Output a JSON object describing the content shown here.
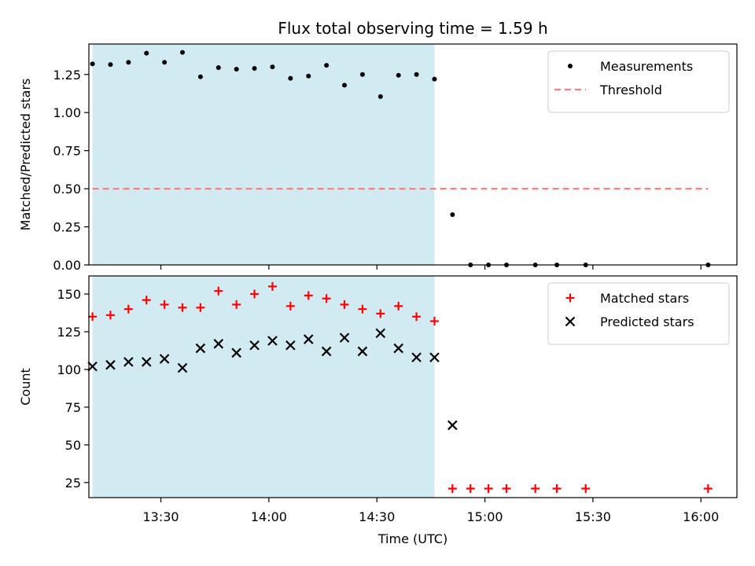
{
  "chart_data": {
    "type": "scatter",
    "title": "Flux total observing time = 1.59 h",
    "xlabel": "Time (UTC)",
    "x_ticks": [
      "13:30",
      "14:00",
      "14:30",
      "15:00",
      "15:30",
      "16:00"
    ],
    "x_range": [
      "13:10",
      "16:10"
    ],
    "shaded_interval": [
      "13:11",
      "14:46"
    ],
    "colors": {
      "shade": "#add8e6",
      "measurements": "#000000",
      "threshold": "#ff7f7f",
      "matched": "#ff0000",
      "predicted": "#000000"
    },
    "panels": [
      {
        "id": "ratio",
        "ylabel": "Matched/Predicted stars",
        "ylim": [
          0.0,
          1.45
        ],
        "y_ticks": [
          "0.00",
          "0.25",
          "0.50",
          "0.75",
          "1.00",
          "1.25"
        ],
        "legend_position": "upper right",
        "series": [
          {
            "name": "Measurements",
            "marker": "dot",
            "x": [
              "13:11",
              "13:16",
              "13:21",
              "13:26",
              "13:31",
              "13:36",
              "13:41",
              "13:46",
              "13:51",
              "13:56",
              "14:01",
              "14:06",
              "14:11",
              "14:16",
              "14:21",
              "14:26",
              "14:31",
              "14:36",
              "14:41",
              "14:46",
              "14:51",
              "14:56",
              "15:01",
              "15:06",
              "15:14",
              "15:20",
              "15:28",
              "16:02"
            ],
            "y": [
              1.32,
              1.315,
              1.33,
              1.39,
              1.33,
              1.395,
              1.235,
              1.295,
              1.285,
              1.29,
              1.3,
              1.225,
              1.24,
              1.31,
              1.18,
              1.25,
              1.105,
              1.245,
              1.25,
              1.22,
              0.33,
              0.0,
              0.0,
              0.0,
              0.0,
              0.0,
              0.0,
              0.0
            ]
          }
        ],
        "threshold": {
          "name": "Threshold",
          "y": 0.5,
          "x": [
            "13:11",
            "16:02"
          ]
        }
      },
      {
        "id": "counts",
        "ylabel": "Count",
        "ylim": [
          15,
          162
        ],
        "y_ticks": [
          "25",
          "50",
          "75",
          "100",
          "125",
          "150"
        ],
        "legend_position": "upper right",
        "series": [
          {
            "name": "Matched stars",
            "marker": "plus",
            "x": [
              "13:11",
              "13:16",
              "13:21",
              "13:26",
              "13:31",
              "13:36",
              "13:41",
              "13:46",
              "13:51",
              "13:56",
              "14:01",
              "14:06",
              "14:11",
              "14:16",
              "14:21",
              "14:26",
              "14:31",
              "14:36",
              "14:41",
              "14:46",
              "14:51",
              "14:56",
              "15:01",
              "15:06",
              "15:14",
              "15:20",
              "15:28",
              "16:02"
            ],
            "y": [
              135,
              136,
              140,
              146,
              143,
              141,
              141,
              152,
              143,
              150,
              155,
              142,
              149,
              147,
              143,
              140,
              137,
              142,
              135,
              132,
              21,
              21,
              21,
              21,
              21,
              21,
              21,
              21
            ]
          },
          {
            "name": "Predicted stars",
            "marker": "x",
            "x": [
              "13:11",
              "13:16",
              "13:21",
              "13:26",
              "13:31",
              "13:36",
              "13:41",
              "13:46",
              "13:51",
              "13:56",
              "14:01",
              "14:06",
              "14:11",
              "14:16",
              "14:21",
              "14:26",
              "14:31",
              "14:36",
              "14:41",
              "14:46",
              "14:51"
            ],
            "y": [
              102,
              103,
              105,
              105,
              107,
              101,
              114,
              117,
              111,
              116,
              119,
              116,
              120,
              112,
              121,
              112,
              124,
              114,
              108,
              108,
              63
            ]
          }
        ]
      }
    ]
  }
}
